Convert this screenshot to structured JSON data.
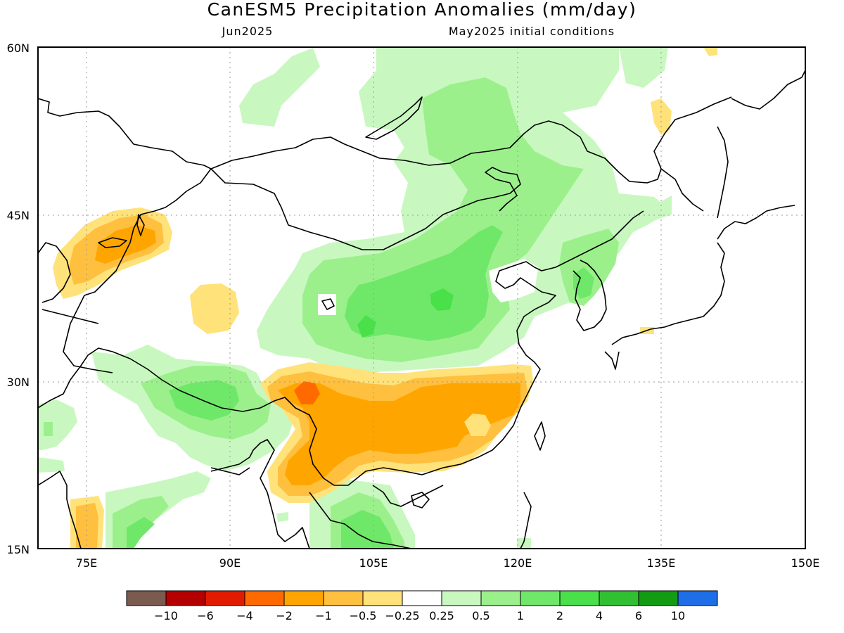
{
  "title": "CanESM5 Precipitation Anomalies (mm/day)",
  "subtitle_left": "Jun2025",
  "subtitle_right": "May2025 initial conditions",
  "lat_labels": [
    "60N",
    "45N",
    "30N",
    "15N"
  ],
  "lon_labels": [
    "75E",
    "90E",
    "105E",
    "120E",
    "135E",
    "150E"
  ],
  "legend": {
    "colors": [
      "#7b5a4f",
      "#b40000",
      "#e01b00",
      "#ff6a00",
      "#ffa500",
      "#ffbf3f",
      "#ffe27a",
      "#ffffff",
      "#c8f8c0",
      "#9cf08c",
      "#6fe86a",
      "#49e04a",
      "#31c031",
      "#139b13",
      "#1e6ee8"
    ],
    "labels": [
      "−10",
      "−6",
      "−4",
      "−2",
      "−1",
      "−0.5",
      "−0.25",
      "0.25",
      "0.5",
      "1",
      "2",
      "4",
      "6",
      "10"
    ]
  },
  "colors": {
    "frame": "#000000",
    "grid": "#9a9a9a",
    "coast": "#000000"
  }
}
